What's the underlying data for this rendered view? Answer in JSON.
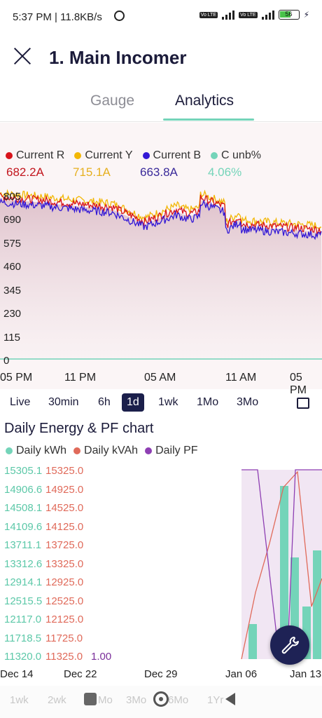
{
  "status": {
    "time": "5:37 PM | 11.8KB/s",
    "battery": "56",
    "net1": "5G+",
    "tag1": "Vo LTE",
    "tag2": "Vo LTE"
  },
  "header": {
    "title": "1. Main Incomer"
  },
  "tabs": [
    {
      "label": "Gauge"
    },
    {
      "label": "Analytics"
    }
  ],
  "legend": [
    {
      "label": "Current R",
      "value": "682.2A",
      "color": "#d8131b"
    },
    {
      "label": "Current Y",
      "value": "715.1A",
      "color": "#f2b705"
    },
    {
      "label": "Current B",
      "value": "663.8A",
      "color": "#3318d6"
    },
    {
      "label": "C unb%",
      "value": "4.06%",
      "color": "#74d4b9"
    }
  ],
  "chart": {
    "yticks": [
      "805",
      "690",
      "575",
      "460",
      "345",
      "230",
      "115",
      "0"
    ],
    "xticks": [
      "05 PM",
      "11 PM",
      "05 AM",
      "11 AM",
      "05 PM"
    ]
  },
  "ranges": [
    "Live",
    "30min",
    "6h",
    "1d",
    "1wk",
    "1Mo",
    "3Mo"
  ],
  "selected_range": "1d",
  "daily": {
    "title": "Daily Energy & PF chart",
    "legend": [
      {
        "label": "Daily kWh",
        "color": "#74d4b9"
      },
      {
        "label": "Daily kVAh",
        "color": "#e06a5a"
      },
      {
        "label": "Daily PF",
        "color": "#8e3fb3"
      }
    ],
    "kwh_ticks": [
      "15305.1",
      "14906.6",
      "14508.1",
      "14109.6",
      "13711.1",
      "13312.6",
      "12914.1",
      "12515.5",
      "12117.0",
      "11718.5",
      "11320.0"
    ],
    "kvah_ticks": [
      "15325.0",
      "14925.0",
      "14525.0",
      "14125.0",
      "13725.0",
      "13325.0",
      "12925.0",
      "12525.0",
      "12125.0",
      "11725.0",
      "11325.0"
    ],
    "pf_tick": "1.00",
    "xticks": [
      "Dec 14",
      "Dec 22",
      "Dec 29",
      "Jan 06",
      "Jan 13"
    ]
  },
  "bottom": {
    "ghost": [
      "1wk",
      "2wk",
      "Mo",
      "3Mo",
      "6Mo",
      "1Yr"
    ]
  }
}
